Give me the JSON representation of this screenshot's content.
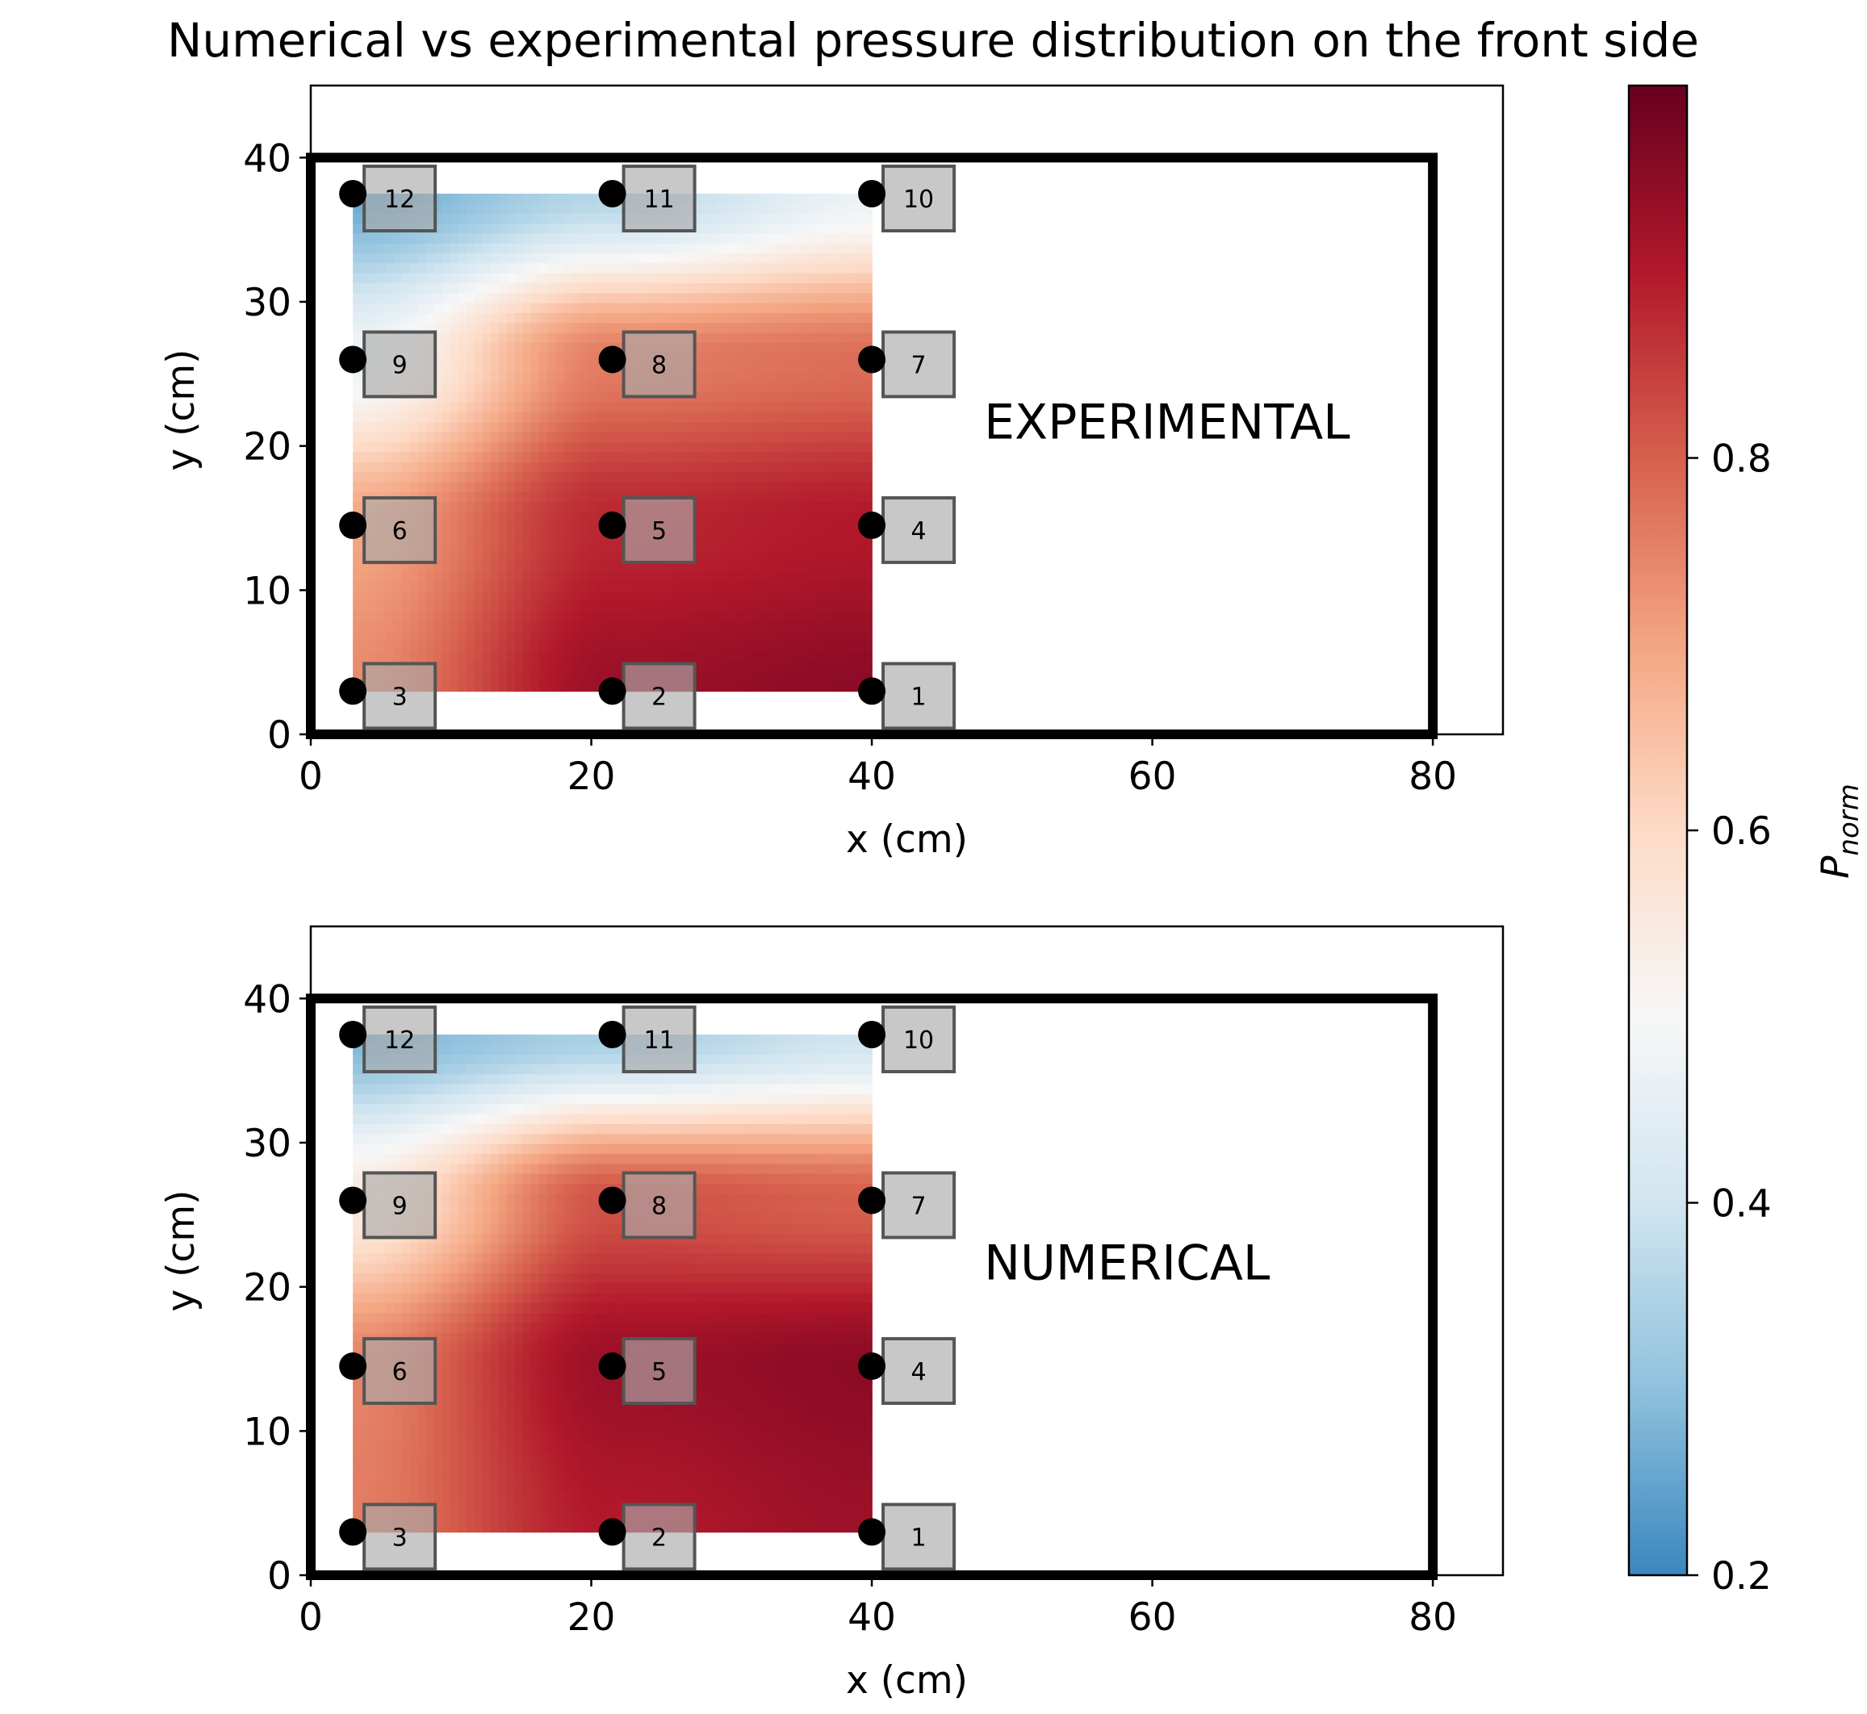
{
  "chart_data": {
    "type": "contour",
    "title": "Numerical vs experimental pressure distribution on the front side",
    "colorbar": {
      "label_main": "P",
      "label_sub": "norm",
      "range": [
        0.2,
        1.0
      ],
      "ticks": [
        {
          "value": 0.2,
          "label": "0.2"
        },
        {
          "value": 0.4,
          "label": "0.4"
        },
        {
          "value": 0.6,
          "label": "0.6"
        },
        {
          "value": 0.8,
          "label": "0.8"
        }
      ],
      "colormap": "RdBu_r",
      "colors": [
        "#3a87bf",
        "#8fc1dd",
        "#d1e5f0",
        "#f7f7f7",
        "#fddbc7",
        "#f4a582",
        "#d6604d",
        "#b2182b",
        "#67001f"
      ]
    },
    "plate_outline": {
      "x": [
        0,
        80
      ],
      "y": [
        0,
        40
      ]
    },
    "sensors": [
      {
        "id": "1",
        "x": 40,
        "y": 3
      },
      {
        "id": "2",
        "x": 21.5,
        "y": 3
      },
      {
        "id": "3",
        "x": 3,
        "y": 3
      },
      {
        "id": "4",
        "x": 40,
        "y": 14.5
      },
      {
        "id": "5",
        "x": 21.5,
        "y": 14.5
      },
      {
        "id": "6",
        "x": 3,
        "y": 14.5
      },
      {
        "id": "7",
        "x": 40,
        "y": 26
      },
      {
        "id": "8",
        "x": 21.5,
        "y": 26
      },
      {
        "id": "9",
        "x": 3,
        "y": 26
      },
      {
        "id": "10",
        "x": 40,
        "y": 37.5
      },
      {
        "id": "11",
        "x": 21.5,
        "y": 37.5
      },
      {
        "id": "12",
        "x": 3,
        "y": 37.5
      }
    ],
    "panels": [
      {
        "name": "experimental",
        "label": "EXPERIMENTAL",
        "xlabel": "x (cm)",
        "ylabel": "y (cm)",
        "xlim": [
          0,
          85
        ],
        "ylim": [
          0,
          45
        ],
        "xticks": [
          {
            "value": 0,
            "label": "0"
          },
          {
            "value": 20,
            "label": "20"
          },
          {
            "value": 40,
            "label": "40"
          },
          {
            "value": 60,
            "label": "60"
          },
          {
            "value": 80,
            "label": "80"
          }
        ],
        "yticks": [
          {
            "value": 0,
            "label": "0"
          },
          {
            "value": 10,
            "label": "10"
          },
          {
            "value": 20,
            "label": "20"
          },
          {
            "value": 30,
            "label": "30"
          },
          {
            "value": 40,
            "label": "40"
          }
        ],
        "sensor_values": {
          "1": 0.95,
          "2": 0.93,
          "3": 0.74,
          "4": 0.9,
          "5": 0.88,
          "6": 0.7,
          "7": 0.78,
          "8": 0.76,
          "9": 0.48,
          "10": 0.47,
          "11": 0.36,
          "12": 0.26
        }
      },
      {
        "name": "numerical",
        "label": "NUMERICAL",
        "xlabel": "x (cm)",
        "ylabel": "y (cm)",
        "xlim": [
          0,
          85
        ],
        "ylim": [
          0,
          45
        ],
        "xticks": [
          {
            "value": 0,
            "label": "0"
          },
          {
            "value": 20,
            "label": "20"
          },
          {
            "value": 40,
            "label": "40"
          },
          {
            "value": 60,
            "label": "60"
          },
          {
            "value": 80,
            "label": "80"
          }
        ],
        "yticks": [
          {
            "value": 0,
            "label": "0"
          },
          {
            "value": 10,
            "label": "10"
          },
          {
            "value": 20,
            "label": "20"
          },
          {
            "value": 30,
            "label": "30"
          },
          {
            "value": 40,
            "label": "40"
          }
        ],
        "sensor_values": {
          "1": 0.93,
          "2": 0.9,
          "3": 0.76,
          "4": 0.95,
          "5": 0.93,
          "6": 0.75,
          "7": 0.8,
          "8": 0.82,
          "9": 0.55,
          "10": 0.4,
          "11": 0.34,
          "12": 0.28
        }
      }
    ]
  }
}
